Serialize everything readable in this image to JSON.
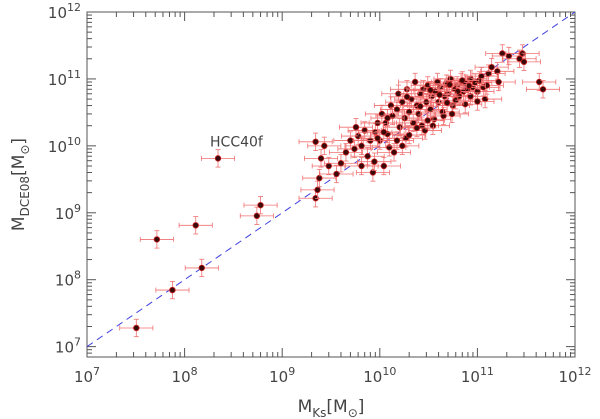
{
  "chart_data": {
    "type": "scatter",
    "title": "",
    "x_scale": "log",
    "y_scale": "log",
    "xlim": [
      10000000.0,
      1000000000000.0
    ],
    "ylim": [
      7000000.0,
      1000000000000.0
    ],
    "xlabel": {
      "base": "M",
      "sub": "Ks",
      "unit_open": "[M",
      "unit_sub": "⊙",
      "unit_close": "]"
    },
    "ylabel": {
      "base": "M",
      "sub": "DCE08",
      "unit_open": "[M",
      "unit_sub": "⊙",
      "unit_close": "]"
    },
    "x_ticks": [
      {
        "value": 10000000.0,
        "base": "10",
        "exp": "7"
      },
      {
        "value": 100000000.0,
        "base": "10",
        "exp": "8"
      },
      {
        "value": 1000000000.0,
        "base": "10",
        "exp": "9"
      },
      {
        "value": 10000000000.0,
        "base": "10",
        "exp": "10"
      },
      {
        "value": 100000000000.0,
        "base": "10",
        "exp": "11"
      },
      {
        "value": 1000000000000.0,
        "base": "10",
        "exp": "12"
      }
    ],
    "y_ticks": [
      {
        "value": 10000000.0,
        "base": "10",
        "exp": "7"
      },
      {
        "value": 100000000.0,
        "base": "10",
        "exp": "8"
      },
      {
        "value": 1000000000.0,
        "base": "10",
        "exp": "9"
      },
      {
        "value": 10000000000.0,
        "base": "10",
        "exp": "10"
      },
      {
        "value": 100000000000.0,
        "base": "10",
        "exp": "11"
      },
      {
        "value": 1000000000000.0,
        "base": "10",
        "exp": "12"
      }
    ],
    "reference_line": {
      "style": "dashed",
      "color": "#4040e0",
      "relation": "y = x"
    },
    "annotations": [
      {
        "text": "HCC40f",
        "x": 220000000.0,
        "y": 6500000000.0
      }
    ],
    "colors": {
      "point": "#3a0a0a",
      "point_edge": "#c81e1e",
      "error_bar": "#f07070"
    },
    "x_err_dex": 0.17,
    "y_err_dex": 0.13,
    "points": [
      [
        32000000.0,
        19000000.0
      ],
      [
        75000000.0,
        70000000.0
      ],
      [
        52000000.0,
        400000000.0
      ],
      [
        130000000.0,
        650000000.0
      ],
      [
        150000000.0,
        150000000.0
      ],
      [
        220000000.0,
        6500000000.0
      ],
      [
        550000000.0,
        900000000.0
      ],
      [
        600000000.0,
        1300000000.0
      ],
      [
        2200000000.0,
        11500000000.0
      ],
      [
        2200000000.0,
        1650000000.0
      ],
      [
        2300000000.0,
        2200000000.0
      ],
      [
        2400000000.0,
        3300000000.0
      ],
      [
        2500000000.0,
        6500000000.0
      ],
      [
        2700000000.0,
        10000000000.0
      ],
      [
        3000000000.0,
        5000000000.0
      ],
      [
        3600000000.0,
        3800000000.0
      ],
      [
        4000000000.0,
        5500000000.0
      ],
      [
        4500000000.0,
        8000000000.0
      ],
      [
        5000000000.0,
        12000000000.0
      ],
      [
        5500000000.0,
        9000000000.0
      ],
      [
        6000000000.0,
        14000000000.0
      ],
      [
        6500000000.0,
        5000000000.0
      ],
      [
        7000000000.0,
        17000000000.0
      ],
      [
        7500000000.0,
        7000000000.0
      ],
      [
        8000000000.0,
        12000000000.0
      ],
      [
        8500000000.0,
        4000000000.0
      ],
      [
        9000000000.0,
        16000000000.0
      ],
      [
        9500000000.0,
        22000000000.0
      ],
      [
        10000000000.0,
        12000000000.0
      ],
      [
        10500000000.0,
        30000000000.0
      ],
      [
        11000000000.0,
        5000000000.0
      ],
      [
        11500000000.0,
        22000000000.0
      ],
      [
        12000000000.0,
        15000000000.0
      ],
      [
        13000000000.0,
        40000000000.0
      ],
      [
        13500000000.0,
        28000000000.0
      ],
      [
        14000000000.0,
        8000000000.0
      ],
      [
        15000000000.0,
        35000000000.0
      ],
      [
        15500000000.0,
        60000000000.0
      ],
      [
        16000000000.0,
        19000000000.0
      ],
      [
        17000000000.0,
        45000000000.0
      ],
      [
        18000000000.0,
        26000000000.0
      ],
      [
        18500000000.0,
        13000000000.0
      ],
      [
        19000000000.0,
        70000000000.0
      ],
      [
        20000000000.0,
        32000000000.0
      ],
      [
        21000000000.0,
        50000000000.0
      ],
      [
        22000000000.0,
        22000000000.0
      ],
      [
        23000000000.0,
        90000000000.0
      ],
      [
        24000000000.0,
        40000000000.0
      ],
      [
        25000000000.0,
        30000000000.0
      ],
      [
        26000000000.0,
        60000000000.0
      ],
      [
        27000000000.0,
        20000000000.0
      ],
      [
        28000000000.0,
        70000000000.0
      ],
      [
        30000000000.0,
        45000000000.0
      ],
      [
        31000000000.0,
        80000000000.0
      ],
      [
        33000000000.0,
        35000000000.0
      ],
      [
        34000000000.0,
        55000000000.0
      ],
      [
        36000000000.0,
        25000000000.0
      ],
      [
        37000000000.0,
        65000000000.0
      ],
      [
        39000000000.0,
        90000000000.0
      ],
      [
        40000000000.0,
        45000000000.0
      ],
      [
        42000000000.0,
        75000000000.0
      ],
      [
        44000000000.0,
        32000000000.0
      ],
      [
        46000000000.0,
        55000000000.0
      ],
      [
        48000000000.0,
        85000000000.0
      ],
      [
        50000000000.0,
        60000000000.0
      ],
      [
        53000000000.0,
        100000000000.0
      ],
      [
        56000000000.0,
        40000000000.0
      ],
      [
        59000000000.0,
        70000000000.0
      ],
      [
        62000000000.0,
        80000000000.0
      ],
      [
        65000000000.0,
        55000000000.0
      ],
      [
        68000000000.0,
        90000000000.0
      ],
      [
        72000000000.0,
        65000000000.0
      ],
      [
        76000000000.0,
        85000000000.0
      ],
      [
        80000000000.0,
        70000000000.0
      ],
      [
        85000000000.0,
        100000000000.0
      ],
      [
        90000000000.0,
        75000000000.0
      ],
      [
        95000000000.0,
        88000000000.0
      ],
      [
        100000000000.0,
        65000000000.0
      ],
      [
        105000000000.0,
        95000000000.0
      ],
      [
        110000000000.0,
        110000000000.0
      ],
      [
        115000000000.0,
        75000000000.0
      ],
      [
        120000000000.0,
        50000000000.0
      ],
      [
        130000000000.0,
        120000000000.0
      ],
      [
        140000000000.0,
        150000000000.0
      ],
      [
        160000000000.0,
        130000000000.0
      ],
      [
        180000000000.0,
        240000000000.0
      ],
      [
        210000000000.0,
        220000000000.0
      ],
      [
        270000000000.0,
        200000000000.0
      ],
      [
        290000000000.0,
        240000000000.0
      ],
      [
        165000000000.0,
        90000000000.0
      ],
      [
        430000000000.0,
        90000000000.0
      ],
      [
        470000000000.0,
        70000000000.0
      ],
      [
        300000000000.0,
        180000000000.0
      ],
      [
        6500000000.0,
        10000000000.0
      ],
      [
        8800000000.0,
        5800000000.0
      ],
      [
        12500000000.0,
        9500000000.0
      ],
      [
        17000000000.0,
        10000000000.0
      ],
      [
        20000000000.0,
        14500000000.0
      ],
      [
        29000000000.0,
        17000000000.0
      ],
      [
        35000000000.0,
        20000000000.0
      ],
      [
        45000000000.0,
        28000000000.0
      ],
      [
        55000000000.0,
        30000000000.0
      ],
      [
        60000000000.0,
        48000000000.0
      ],
      [
        75000000000.0,
        42000000000.0
      ],
      [
        85000000000.0,
        55000000000.0
      ],
      [
        100000000000.0,
        46000000000.0
      ],
      [
        125000000000.0,
        80000000000.0
      ],
      [
        9500000000.0,
        13000000000.0
      ],
      [
        11000000000.0,
        16000000000.0
      ],
      [
        15000000000.0,
        12000000000.0
      ],
      [
        24000000000.0,
        18500000000.0
      ],
      [
        31000000000.0,
        24000000000.0
      ],
      [
        49000000000.0,
        44000000000.0
      ],
      [
        63000000000.0,
        65000000000.0
      ],
      [
        82000000000.0,
        79000000000.0
      ],
      [
        5700000000.0,
        19000000000.0
      ],
      [
        12000000000.0,
        26000000000.0
      ],
      [
        26000000000.0,
        39000000000.0
      ],
      [
        33000000000.0,
        68000000000.0
      ],
      [
        41000000000.0,
        58000000000.0
      ],
      [
        19000000000.0,
        54000000000.0
      ],
      [
        70000000000.0,
        95000000000.0
      ],
      [
        52000000000.0,
        82000000000.0
      ]
    ]
  }
}
